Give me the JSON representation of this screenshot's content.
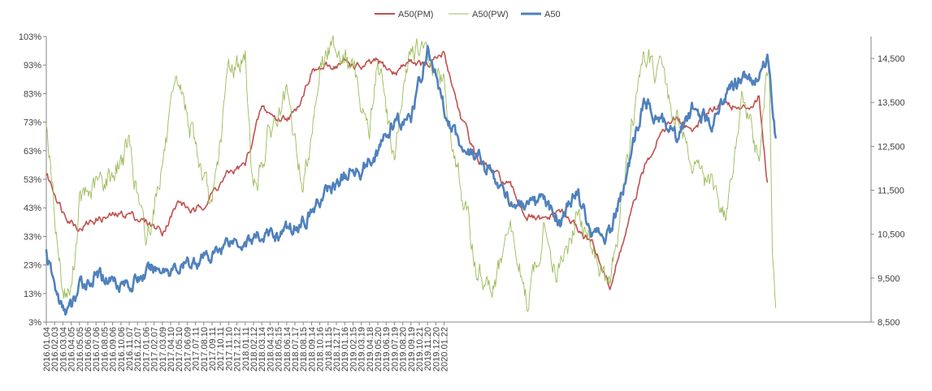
{
  "chart_data": {
    "type": "line",
    "title": "",
    "legend_position": "top-center",
    "grid": false,
    "x_tick_labels": [
      "2016.01.04",
      "2016.02.03",
      "2016.03.04",
      "2016.04.05",
      "2016.05.05",
      "2016.06.06",
      "2016.07.06",
      "2016.08.05",
      "2016.09.06",
      "2016.10.06",
      "2016.11.07",
      "2016.12.07",
      "2017.01.06",
      "2017.02.07",
      "2017.03.09",
      "2017.04.10",
      "2017.05.10",
      "2017.06.09",
      "2017.07.11",
      "2017.08.10",
      "2017.09.11",
      "2017.10.11",
      "2017.11.10",
      "2017.12.12",
      "2018.01.11",
      "2018.02.12",
      "2018.03.14",
      "2018.04.13",
      "2018.05.15",
      "2018.06.14",
      "2018.07.17",
      "2018.08.15",
      "2018.09.14",
      "2018.10.16",
      "2018.11.15",
      "2018.12.17",
      "2019.01.16",
      "2019.02.15",
      "2019.03.19",
      "2019.04.18",
      "2019.05.20",
      "2019.06.19",
      "2019.07.19",
      "2019.08.20",
      "2019.09.19",
      "2019.10.21",
      "2019.11.20",
      "2019.12.20",
      "2020.01.22"
    ],
    "left_axis": {
      "ylim": [
        3,
        103
      ],
      "tick_values": [
        3,
        13,
        23,
        33,
        43,
        53,
        63,
        73,
        83,
        93,
        103
      ],
      "tick_labels": [
        "3%",
        "13%",
        "23%",
        "33%",
        "43%",
        "53%",
        "63%",
        "73%",
        "83%",
        "93%",
        "103%"
      ]
    },
    "right_axis": {
      "ylim": [
        8500,
        15000
      ],
      "tick_values": [
        8500,
        9500,
        10500,
        11500,
        12500,
        13500,
        14500
      ],
      "tick_labels": [
        "8,500",
        "9,500",
        "10,500",
        "11,500",
        "12,500",
        "13,500",
        "14,500"
      ]
    },
    "series": [
      {
        "name": "A50(PM)",
        "axis": "left",
        "color": "#C0504D",
        "anchors": [
          [
            0,
            55
          ],
          [
            2,
            42
          ],
          [
            4,
            36
          ],
          [
            6,
            39
          ],
          [
            8,
            40
          ],
          [
            10,
            41
          ],
          [
            12,
            38
          ],
          [
            14,
            35
          ],
          [
            16,
            45
          ],
          [
            18,
            41
          ],
          [
            20,
            48
          ],
          [
            22,
            55
          ],
          [
            24,
            58
          ],
          [
            26,
            78
          ],
          [
            28,
            74
          ],
          [
            30,
            76
          ],
          [
            32,
            91
          ],
          [
            34,
            92
          ],
          [
            36,
            94
          ],
          [
            38,
            92
          ],
          [
            40,
            94
          ],
          [
            42,
            90
          ],
          [
            44,
            95
          ],
          [
            46,
            92
          ],
          [
            48,
            97
          ],
          [
            50,
            75
          ],
          [
            52,
            60
          ],
          [
            54,
            55
          ],
          [
            56,
            50
          ],
          [
            58,
            40
          ],
          [
            60,
            38
          ],
          [
            62,
            42
          ],
          [
            64,
            36
          ],
          [
            66,
            30
          ],
          [
            68,
            15
          ],
          [
            70,
            35
          ],
          [
            72,
            55
          ],
          [
            74,
            70
          ],
          [
            76,
            74
          ],
          [
            78,
            70
          ],
          [
            80,
            78
          ],
          [
            82,
            80
          ],
          [
            84,
            77
          ],
          [
            86,
            82
          ],
          [
            87,
            52
          ]
        ]
      },
      {
        "name": "A50(PW)",
        "axis": "left",
        "color": "#9BBB59",
        "anchors": [
          [
            0,
            75
          ],
          [
            1,
            40
          ],
          [
            2,
            14
          ],
          [
            3,
            13
          ],
          [
            4,
            44
          ],
          [
            6,
            50
          ],
          [
            8,
            55
          ],
          [
            10,
            65
          ],
          [
            12,
            30
          ],
          [
            14,
            60
          ],
          [
            16,
            86
          ],
          [
            18,
            65
          ],
          [
            20,
            40
          ],
          [
            22,
            92
          ],
          [
            24,
            95
          ],
          [
            25,
            48
          ],
          [
            27,
            70
          ],
          [
            29,
            80
          ],
          [
            31,
            50
          ],
          [
            33,
            93
          ],
          [
            35,
            101
          ],
          [
            37,
            90
          ],
          [
            39,
            70
          ],
          [
            40,
            95
          ],
          [
            42,
            60
          ],
          [
            44,
            100
          ],
          [
            46,
            95
          ],
          [
            48,
            85
          ],
          [
            50,
            50
          ],
          [
            52,
            20
          ],
          [
            54,
            15
          ],
          [
            56,
            35
          ],
          [
            58,
            10
          ],
          [
            60,
            35
          ],
          [
            62,
            20
          ],
          [
            64,
            40
          ],
          [
            66,
            30
          ],
          [
            68,
            12
          ],
          [
            70,
            60
          ],
          [
            72,
            95
          ],
          [
            74,
            90
          ],
          [
            76,
            75
          ],
          [
            78,
            60
          ],
          [
            80,
            50
          ],
          [
            82,
            40
          ],
          [
            84,
            80
          ],
          [
            86,
            60
          ],
          [
            87.2,
            96
          ],
          [
            87.6,
            30
          ],
          [
            88,
            8
          ]
        ]
      },
      {
        "name": "A50",
        "axis": "right",
        "color": "#4F81BD",
        "anchors": [
          [
            0,
            10100
          ],
          [
            1,
            9300
          ],
          [
            2,
            8750
          ],
          [
            3,
            8800
          ],
          [
            4,
            9300
          ],
          [
            6,
            9550
          ],
          [
            8,
            9500
          ],
          [
            10,
            9350
          ],
          [
            12,
            9600
          ],
          [
            14,
            9750
          ],
          [
            16,
            9700
          ],
          [
            18,
            9900
          ],
          [
            20,
            10000
          ],
          [
            22,
            10400
          ],
          [
            24,
            10350
          ],
          [
            26,
            10450
          ],
          [
            28,
            10500
          ],
          [
            30,
            10700
          ],
          [
            32,
            11000
          ],
          [
            34,
            11500
          ],
          [
            36,
            11800
          ],
          [
            38,
            12000
          ],
          [
            40,
            12400
          ],
          [
            42,
            13000
          ],
          [
            44,
            13100
          ],
          [
            46,
            14700
          ],
          [
            48,
            13400
          ],
          [
            50,
            12500
          ],
          [
            52,
            12300
          ],
          [
            54,
            11800
          ],
          [
            56,
            11300
          ],
          [
            58,
            11000
          ],
          [
            60,
            11200
          ],
          [
            62,
            10800
          ],
          [
            64,
            11500
          ],
          [
            66,
            10400
          ],
          [
            68,
            10500
          ],
          [
            70,
            11800
          ],
          [
            72,
            13500
          ],
          [
            74,
            13200
          ],
          [
            76,
            12700
          ],
          [
            78,
            13300
          ],
          [
            80,
            13000
          ],
          [
            82,
            13700
          ],
          [
            84,
            14100
          ],
          [
            86,
            14000
          ],
          [
            87,
            14600
          ],
          [
            88,
            12700
          ]
        ]
      }
    ]
  }
}
